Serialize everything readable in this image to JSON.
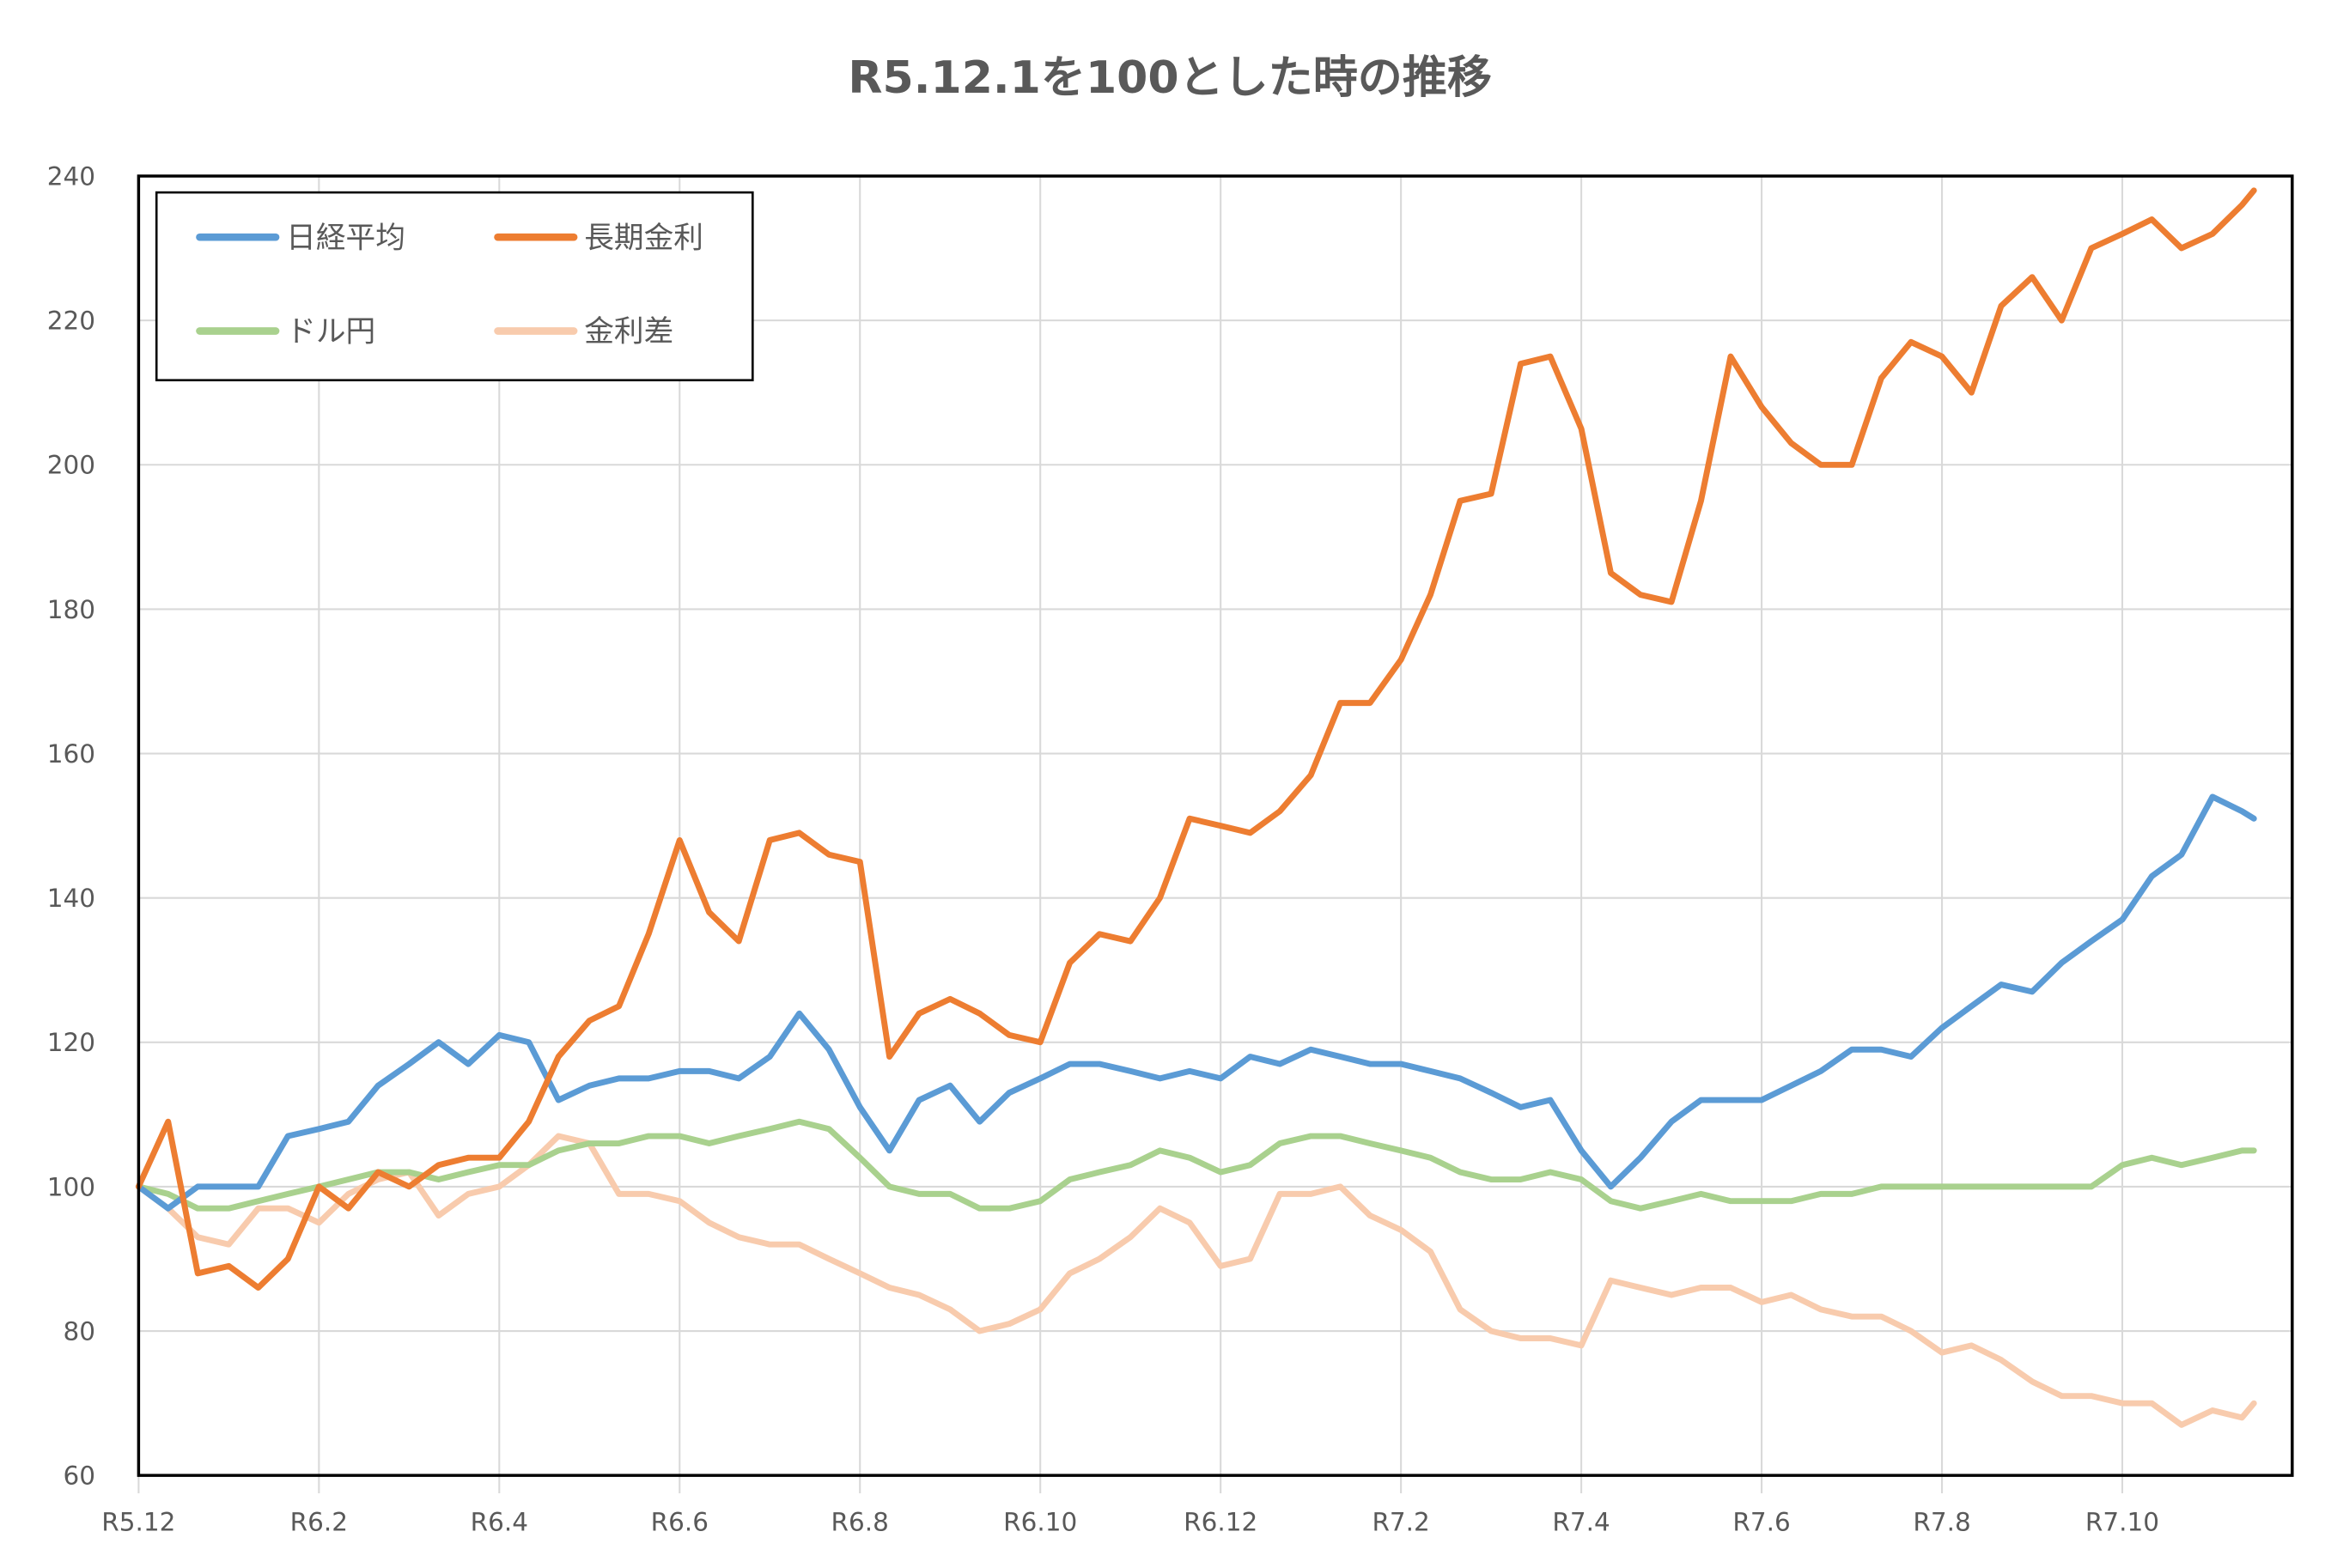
{
  "chart_data": {
    "type": "line",
    "title": "R5.12.1を100とした時の推移",
    "xlabel": "",
    "ylabel": "",
    "ylim": [
      60,
      240
    ],
    "yticks": [
      "60",
      "80",
      "100",
      "120",
      "140",
      "160",
      "180",
      "200",
      "220",
      "240"
    ],
    "xticks": [
      "R5.12",
      "R6.2",
      "R6.4",
      "R6.6",
      "R6.8",
      "R6.10",
      "R6.12",
      "R7.2",
      "R7.4",
      "R7.6",
      "R7.8",
      "R7.10"
    ],
    "grid": true,
    "legend_position": "top-left",
    "x": [
      "R5.12.1",
      "R5.12.11",
      "R5.12.21",
      "R6.1.1",
      "R6.1.11",
      "R6.1.21",
      "R6.2.1",
      "R6.2.11",
      "R6.2.21",
      "R6.3.1",
      "R6.3.11",
      "R6.3.21",
      "R6.4.1",
      "R6.4.11",
      "R6.4.21",
      "R6.5.1",
      "R6.5.11",
      "R6.5.21",
      "R6.6.1",
      "R6.6.11",
      "R6.6.21",
      "R6.7.1",
      "R6.7.11",
      "R6.7.21",
      "R6.8.1",
      "R6.8.11",
      "R6.8.21",
      "R6.9.1",
      "R6.9.11",
      "R6.9.21",
      "R6.10.1",
      "R6.10.11",
      "R6.10.21",
      "R6.11.1",
      "R6.11.11",
      "R6.11.21",
      "R6.12.1",
      "R6.12.11",
      "R6.12.21",
      "R7.1.1",
      "R7.1.11",
      "R7.1.21",
      "R7.2.1",
      "R7.2.11",
      "R7.2.21",
      "R7.3.1",
      "R7.3.11",
      "R7.3.21",
      "R7.4.1",
      "R7.4.11",
      "R7.4.21",
      "R7.5.1",
      "R7.5.11",
      "R7.5.21",
      "R7.6.1",
      "R7.6.11",
      "R7.6.21",
      "R7.7.1",
      "R7.7.11",
      "R7.7.21",
      "R7.8.1",
      "R7.8.11",
      "R7.8.21",
      "R7.9.1",
      "R7.9.11",
      "R7.9.21",
      "R7.10.1",
      "R7.10.11",
      "R7.10.21",
      "R7.11.1",
      "R7.11.11",
      "R7.11.15"
    ],
    "series": [
      {
        "name": "日経平均",
        "color": "#5B9BD5",
        "values": [
          100,
          97,
          100,
          100,
          100,
          107,
          108,
          109,
          114,
          117,
          120,
          117,
          121,
          120,
          112,
          114,
          115,
          115,
          116,
          116,
          115,
          118,
          124,
          119,
          111,
          105,
          112,
          114,
          109,
          113,
          115,
          117,
          117,
          116,
          115,
          116,
          115,
          118,
          117,
          119,
          118,
          117,
          117,
          116,
          115,
          113,
          111,
          112,
          105,
          100,
          104,
          109,
          112,
          112,
          112,
          114,
          116,
          119,
          119,
          118,
          122,
          125,
          128,
          127,
          131,
          134,
          137,
          143,
          146,
          154,
          152,
          151
        ]
      },
      {
        "name": "長期金利",
        "color": "#ED7D31",
        "values": [
          100,
          109,
          88,
          89,
          86,
          90,
          100,
          97,
          102,
          100,
          103,
          104,
          104,
          109,
          118,
          123,
          125,
          135,
          148,
          138,
          134,
          148,
          149,
          146,
          145,
          118,
          124,
          126,
          124,
          121,
          120,
          131,
          135,
          134,
          140,
          151,
          150,
          149,
          152,
          157,
          167,
          167,
          173,
          182,
          195,
          196,
          214,
          215,
          205,
          185,
          182,
          181,
          195,
          215,
          208,
          203,
          200,
          200,
          212,
          217,
          215,
          210,
          222,
          226,
          220,
          230,
          232,
          234,
          230,
          232,
          236,
          238
        ]
      },
      {
        "name": "ドル円",
        "color": "#A9D18E",
        "values": [
          100,
          99,
          97,
          97,
          98,
          99,
          100,
          101,
          102,
          102,
          101,
          102,
          103,
          103,
          105,
          106,
          106,
          107,
          107,
          106,
          107,
          108,
          109,
          108,
          104,
          100,
          99,
          99,
          97,
          97,
          98,
          101,
          102,
          103,
          105,
          104,
          102,
          103,
          106,
          107,
          107,
          106,
          105,
          104,
          102,
          101,
          101,
          102,
          101,
          98,
          97,
          98,
          99,
          98,
          98,
          98,
          99,
          99,
          100,
          100,
          100,
          100,
          100,
          100,
          100,
          100,
          103,
          104,
          103,
          104,
          105,
          105
        ]
      },
      {
        "name": "金利差",
        "color": "#F8CBAD",
        "values": [
          100,
          97,
          93,
          92,
          97,
          97,
          95,
          99,
          101,
          102,
          96,
          99,
          100,
          103,
          107,
          106,
          99,
          99,
          98,
          95,
          93,
          92,
          92,
          90,
          88,
          86,
          85,
          83,
          80,
          81,
          83,
          88,
          90,
          93,
          97,
          95,
          89,
          90,
          99,
          99,
          100,
          96,
          94,
          91,
          83,
          80,
          79,
          79,
          78,
          87,
          86,
          85,
          86,
          86,
          84,
          85,
          83,
          82,
          82,
          80,
          77,
          78,
          76,
          73,
          71,
          71,
          70,
          70,
          67,
          69,
          68,
          70
        ]
      }
    ]
  }
}
